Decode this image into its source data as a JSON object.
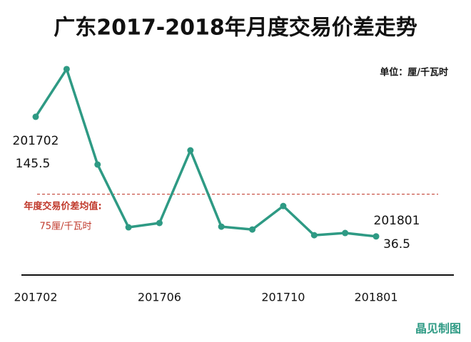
{
  "chart_data": {
    "type": "line",
    "title": "广东2017-2018年月度交易价差走势",
    "unit": "单位：厘/千瓦时",
    "source": "晶见制图",
    "categories": [
      "201702",
      null,
      null,
      null,
      "201706",
      null,
      null,
      null,
      "201710",
      null,
      null,
      "201801"
    ],
    "series": [
      {
        "name": "月度交易价差",
        "color": "#2e9a84",
        "values": [
          145.5,
          189,
          102,
          44.8,
          48.7,
          114.9,
          45.4,
          42.8,
          64.2,
          37.6,
          39.6,
          36.5
        ]
      }
    ],
    "ylim": [
      0,
      200
    ],
    "reference_line": {
      "value": 75,
      "label": "年度交易价差均值:",
      "value_label": "75厘/千瓦时",
      "color": "#c0392b"
    }
  }
}
